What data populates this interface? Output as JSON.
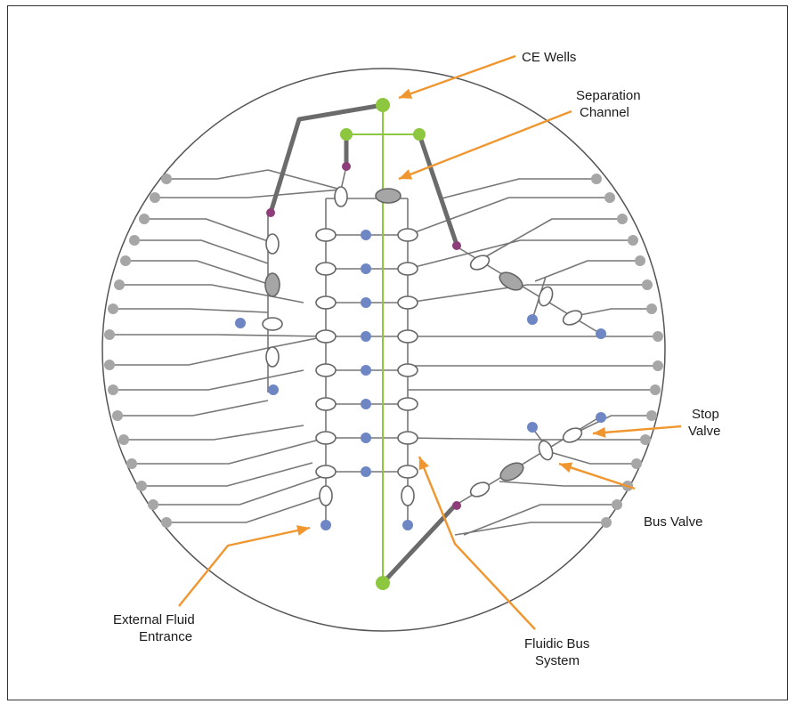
{
  "colors": {
    "border": "#333333",
    "channel": "#777777",
    "thick_channel": "#6b6b6b",
    "separation_channel": "#8dc63f",
    "ce_well": "#8dc63f",
    "port": "#a6a6a6",
    "entrance": "#6e87c4",
    "junction": "#8c3d7a",
    "valve_fill": "#ffffff",
    "bus_valve_fill": "#a6a6a6",
    "arrow": "#f0962f",
    "text": "#1a1a1a"
  },
  "labels": {
    "ce_wells": "CE Wells",
    "separation_1": "Separation",
    "separation_2": "Channel",
    "stop_1": "Stop",
    "stop_2": "Valve",
    "bus_valve": "Bus Valve",
    "external_1": "External Fluid",
    "external_2": "Entrance",
    "fluidic_1": "Fluidic Bus",
    "fluidic_2": "System"
  }
}
